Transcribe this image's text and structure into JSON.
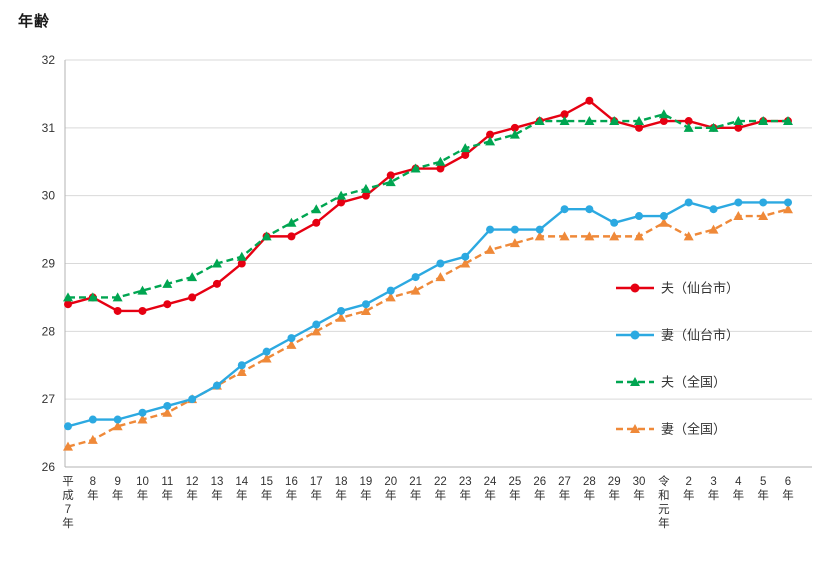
{
  "chart_data": {
    "type": "line",
    "title": "年齢",
    "ylabel": "年齢",
    "ylim": [
      26,
      32
    ],
    "yticks": [
      26,
      27,
      28,
      29,
      30,
      31,
      32
    ],
    "grid": "horizontal",
    "legend_position": "inside-right",
    "axis_color": "#b3b3b3",
    "grid_color": "#d9d9d9",
    "text_color": "#333333",
    "categories": [
      "平成7年",
      "8年",
      "9年",
      "10年",
      "11年",
      "12年",
      "13年",
      "14年",
      "15年",
      "16年",
      "17年",
      "18年",
      "19年",
      "20年",
      "21年",
      "22年",
      "23年",
      "24年",
      "25年",
      "26年",
      "27年",
      "28年",
      "29年",
      "30年",
      "令和元年",
      "2年",
      "3年",
      "4年",
      "5年",
      "6年"
    ],
    "series": [
      {
        "id": "husband-sendai",
        "name": "夫（仙台市）",
        "color": "#e60012",
        "style": "solid",
        "marker": "circle",
        "values": [
          28.4,
          28.5,
          28.3,
          28.3,
          28.4,
          28.5,
          28.7,
          29.0,
          29.4,
          29.4,
          29.6,
          29.9,
          30.0,
          30.3,
          30.4,
          30.4,
          30.6,
          30.9,
          31.0,
          31.1,
          31.2,
          31.4,
          31.1,
          31.0,
          31.1,
          31.1,
          31.0,
          31.0,
          31.1,
          31.1
        ]
      },
      {
        "id": "wife-sendai",
        "name": "妻（仙台市）",
        "color": "#2ca9e1",
        "style": "solid",
        "marker": "circle",
        "values": [
          26.6,
          26.7,
          26.7,
          26.8,
          26.9,
          27.0,
          27.2,
          27.5,
          27.7,
          27.9,
          28.1,
          28.3,
          28.4,
          28.6,
          28.8,
          29.0,
          29.1,
          29.5,
          29.5,
          29.5,
          29.8,
          29.8,
          29.6,
          29.7,
          29.7,
          29.9,
          29.8,
          29.9,
          29.9,
          29.9
        ]
      },
      {
        "id": "husband-national",
        "name": "夫（全国）",
        "color": "#00a551",
        "style": "dashed",
        "marker": "triangle",
        "values": [
          28.5,
          28.5,
          28.5,
          28.6,
          28.7,
          28.8,
          29.0,
          29.1,
          29.4,
          29.6,
          29.8,
          30.0,
          30.1,
          30.2,
          30.4,
          30.5,
          30.7,
          30.8,
          30.9,
          31.1,
          31.1,
          31.1,
          31.1,
          31.1,
          31.2,
          31.0,
          31.0,
          31.1,
          31.1,
          31.1
        ]
      },
      {
        "id": "wife-national",
        "name": "妻（全国）",
        "color": "#ef8939",
        "style": "dashed",
        "marker": "triangle",
        "values": [
          26.3,
          26.4,
          26.6,
          26.7,
          26.8,
          27.0,
          27.2,
          27.4,
          27.6,
          27.8,
          28.0,
          28.2,
          28.3,
          28.5,
          28.6,
          28.8,
          29.0,
          29.2,
          29.3,
          29.4,
          29.4,
          29.4,
          29.4,
          29.4,
          29.6,
          29.4,
          29.5,
          29.7,
          29.7,
          29.8
        ]
      }
    ]
  }
}
